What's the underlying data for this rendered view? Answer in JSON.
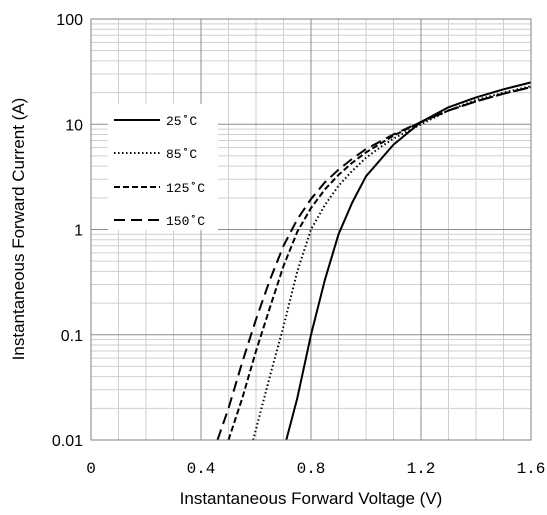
{
  "chart_data": {
    "type": "line",
    "xlabel": "Instantaneous Forward Voltage (V)",
    "ylabel": "Instantaneous Forward Current (A)",
    "x_ticks": [
      "0",
      "0.4",
      "0.8",
      "1.2",
      "1.6"
    ],
    "y_ticks": [
      "0.01",
      "0.1",
      "1",
      "10",
      "100"
    ],
    "xlim": [
      0,
      1.6
    ],
    "ylim": [
      0.01,
      100
    ],
    "y_scale": "log",
    "grid": true,
    "legend_position": "left",
    "series": [
      {
        "name": "25˚C",
        "style": "solid",
        "x": [
          0.71,
          0.75,
          0.8,
          0.85,
          0.9,
          0.95,
          1.0,
          1.1,
          1.2,
          1.3,
          1.4,
          1.5,
          1.6
        ],
        "y": [
          0.01,
          0.025,
          0.1,
          0.33,
          0.9,
          1.8,
          3.2,
          6.4,
          10.5,
          14.5,
          18.0,
          21.5,
          25.0
        ]
      },
      {
        "name": "85˚C",
        "style": "dotted",
        "x": [
          0.59,
          0.65,
          0.7,
          0.75,
          0.8,
          0.85,
          0.9,
          0.95,
          1.0,
          1.05,
          1.1,
          1.2,
          1.3,
          1.4,
          1.5,
          1.6
        ],
        "y": [
          0.01,
          0.04,
          0.12,
          0.4,
          1.0,
          1.7,
          2.6,
          3.6,
          4.8,
          6.0,
          7.3,
          10.0,
          13.5,
          17.0,
          20.0,
          23.0
        ]
      },
      {
        "name": "125˚C",
        "style": "dashed",
        "x": [
          0.5,
          0.55,
          0.6,
          0.65,
          0.7,
          0.75,
          0.8,
          0.85,
          0.9,
          0.95,
          1.0,
          1.1,
          1.2,
          1.3,
          1.4,
          1.5,
          1.6
        ],
        "y": [
          0.01,
          0.025,
          0.07,
          0.18,
          0.45,
          0.95,
          1.6,
          2.4,
          3.3,
          4.3,
          5.4,
          7.8,
          10.5,
          13.5,
          16.5,
          19.5,
          22.5
        ]
      },
      {
        "name": "150˚C",
        "style": "long-dashed",
        "x": [
          0.46,
          0.5,
          0.55,
          0.6,
          0.65,
          0.7,
          0.75,
          0.8,
          0.85,
          0.9,
          0.95,
          1.0,
          1.1,
          1.2,
          1.3,
          1.4,
          1.5,
          1.6
        ],
        "y": [
          0.01,
          0.02,
          0.055,
          0.14,
          0.33,
          0.7,
          1.25,
          1.95,
          2.8,
          3.7,
          4.7,
          5.8,
          8.0,
          10.5,
          13.5,
          16.5,
          19.5,
          22.5
        ]
      }
    ]
  }
}
